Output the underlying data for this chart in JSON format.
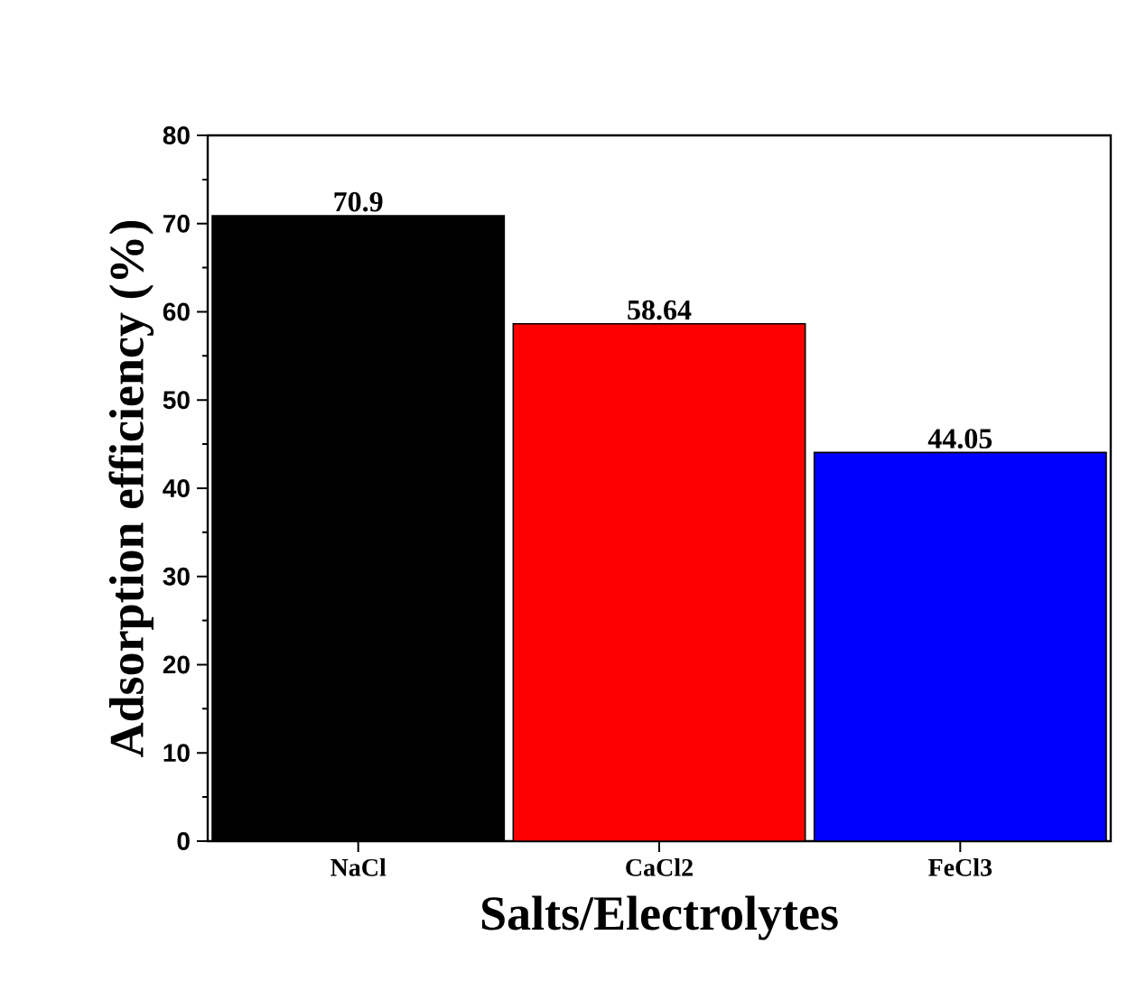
{
  "chart_data": {
    "type": "bar",
    "xlabel": "Salts/Electrolytes",
    "ylabel": "Adsorption efficiency (%)",
    "categories": [
      "NaCl",
      "CaCl2",
      "FeCl3"
    ],
    "values": [
      70.9,
      58.64,
      44.05
    ],
    "colors": [
      "#000000",
      "#ff0000",
      "#0000ff"
    ],
    "data_labels": true,
    "ylim": [
      0,
      80
    ],
    "yticks": [
      0,
      10,
      20,
      30,
      40,
      50,
      60,
      70,
      80
    ],
    "grid": false
  }
}
